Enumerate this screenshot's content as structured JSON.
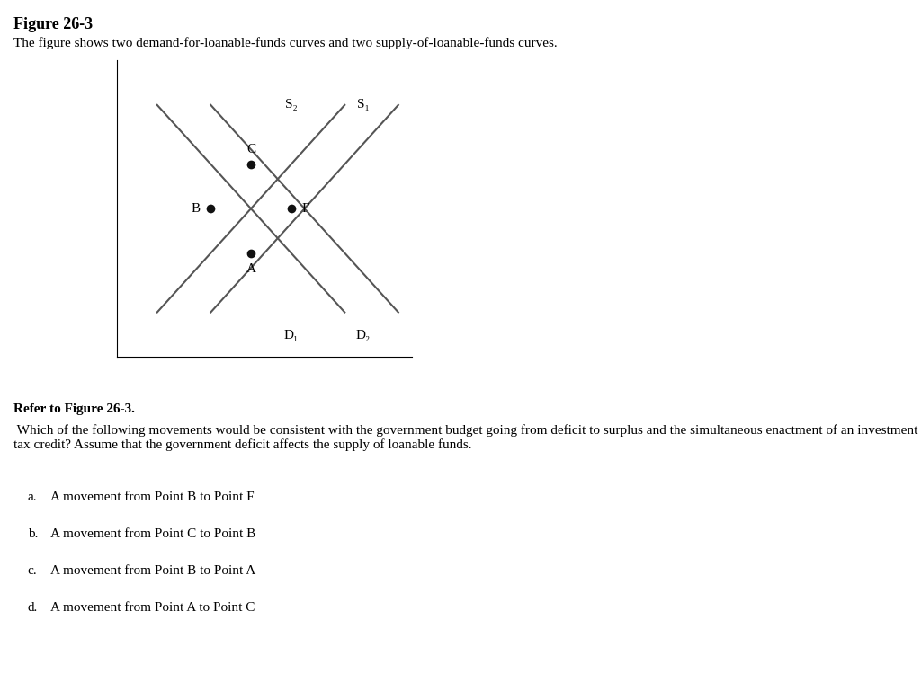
{
  "chart_data": {
    "type": "line",
    "title": "Figure 26-3",
    "subtitle": "The figure shows two demand-for-loanable-funds curves and two supply-of-loanable-funds curves.",
    "xlim": [
      0,
      11
    ],
    "ylim": [
      0,
      10
    ],
    "tick_labels": false,
    "series": [
      {
        "type": "line",
        "color": "#555555",
        "x": [
          1.5,
          8.5
        ],
        "values": [
          8.5,
          1.5
        ]
      },
      {
        "type": "line",
        "color": "#555555",
        "x": [
          3.5,
          10.5
        ],
        "values": [
          8.5,
          1.5
        ]
      },
      {
        "type": "line",
        "color": "#555555",
        "x": [
          3.5,
          10.5
        ],
        "values": [
          1.5,
          8.5
        ]
      },
      {
        "type": "line",
        "color": "#555555",
        "x": [
          1.5,
          8.5
        ],
        "values": [
          1.5,
          8.5
        ]
      },
      {
        "type": "scatter",
        "color": "#111111",
        "x": [
          3.5,
          5.0,
          5.0,
          6.5
        ],
        "values": [
          5.0,
          6.5,
          3.5,
          5.0
        ]
      }
    ],
    "annotations": [
      {
        "text": "D₁",
        "x": 6.5,
        "y": 0.7
      },
      {
        "text": "D₂",
        "x": 9.2,
        "y": 0.7
      },
      {
        "text": "S₁",
        "x": 9.2,
        "y": 8.5
      },
      {
        "text": "S₂",
        "x": 6.5,
        "y": 8.5
      },
      {
        "text": "B",
        "x": 2.95,
        "y": 5.0
      },
      {
        "text": "C",
        "x": 5.0,
        "y": 7.0
      },
      {
        "text": "A",
        "x": 5.0,
        "y": 2.95
      },
      {
        "text": "F",
        "x": 7.05,
        "y": 5.0
      }
    ],
    "question_bold": "Refer to Figure 26-3.",
    "question": " Which of the following movements would be consistent with the government budget going from deficit to surplus and the simultaneous enactment of an investment tax credit? Assume that the government deficit affects the supply of loanable funds.",
    "options": [
      {
        "letter": "a.",
        "text": "A movement from Point B to Point F"
      },
      {
        "letter": "b.",
        "text": "A movement from Point C to Point B"
      },
      {
        "letter": "c.",
        "text": "A movement from Point B to Point A"
      },
      {
        "letter": "d.",
        "text": "A movement from Point A to Point C"
      }
    ]
  }
}
